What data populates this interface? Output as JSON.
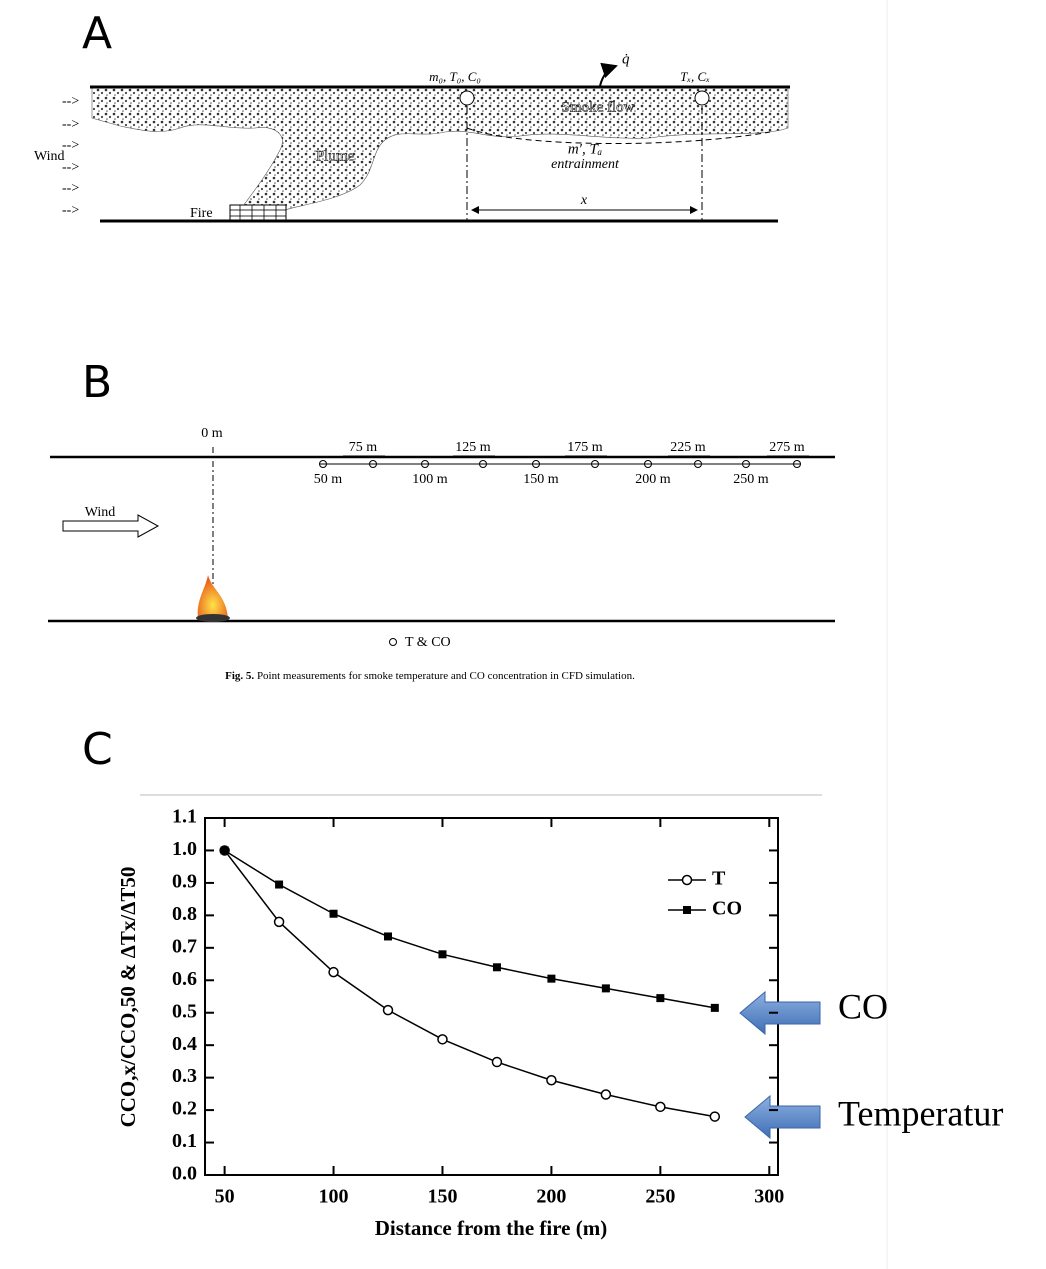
{
  "panels": {
    "a": {
      "letter": "A",
      "wind": "Wind",
      "m0": "m₀, T₀, C₀",
      "q": "q̇",
      "tx": "Tₓ, Cₓ",
      "smoke_flow": "Smoke flow",
      "plume": "Plume",
      "entrain_vars": "m′, Tₐ",
      "entrainment": "entrainment",
      "fire": "Fire",
      "x": "x"
    },
    "b": {
      "letter": "B",
      "origin": "0 m",
      "wind": "Wind",
      "distances_top": [
        "75 m",
        "125 m",
        "175 m",
        "225 m",
        "275 m"
      ],
      "distances_bottom": [
        "50 m",
        "100 m",
        "150 m",
        "200 m",
        "250 m"
      ],
      "legend": "T & CO",
      "caption_label": "Fig. 5.",
      "caption": "Point measurements for smoke temperature and CO concentration in CFD simulation."
    },
    "c": {
      "letter": "C"
    }
  },
  "chart_data": {
    "type": "line",
    "x_label": "Distance from the fire (m)",
    "y_label": "CCO,x/CCO,50 & ΔTx/ΔT50",
    "x": [
      50,
      75,
      100,
      125,
      150,
      175,
      200,
      225,
      250,
      275
    ],
    "series": [
      {
        "name": "T",
        "color": "#000000",
        "marker": "circle-open",
        "values": [
          1.0,
          0.78,
          0.625,
          0.508,
          0.418,
          0.348,
          0.292,
          0.248,
          0.21,
          0.18
        ]
      },
      {
        "name": "CO",
        "color": "#000000",
        "marker": "square",
        "values": [
          1.0,
          0.895,
          0.805,
          0.735,
          0.68,
          0.64,
          0.605,
          0.575,
          0.545,
          0.515
        ]
      }
    ],
    "xlim": [
      41,
      304
    ],
    "xticks": [
      50,
      100,
      150,
      200,
      250,
      300
    ],
    "ylim": [
      0,
      1.1
    ],
    "yticks": [
      {
        "value": 0,
        "label": "0.0"
      },
      0.1,
      0.2,
      0.3,
      0.4,
      0.5,
      0.6,
      0.7,
      0.8,
      0.9,
      {
        "value": 1,
        "label": "1.0"
      },
      1.1
    ],
    "legend": "upper right",
    "annotations": [
      "CO",
      "Temperatur"
    ]
  }
}
